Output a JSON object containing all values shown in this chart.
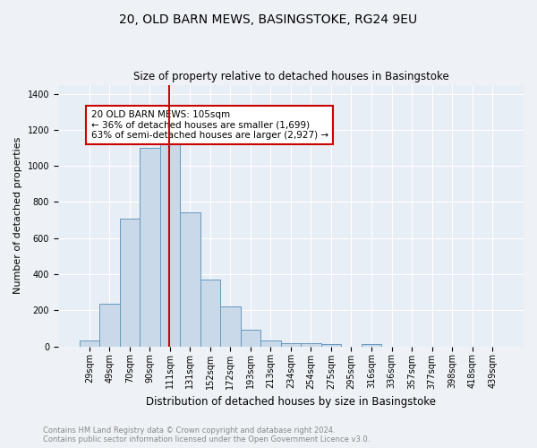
{
  "title": "20, OLD BARN MEWS, BASINGSTOKE, RG24 9EU",
  "subtitle": "Size of property relative to detached houses in Basingstoke",
  "xlabel": "Distribution of detached houses by size in Basingstoke",
  "ylabel": "Number of detached properties",
  "bar_labels": [
    "29sqm",
    "49sqm",
    "70sqm",
    "90sqm",
    "111sqm",
    "131sqm",
    "152sqm",
    "172sqm",
    "193sqm",
    "213sqm",
    "234sqm",
    "254sqm",
    "275sqm",
    "295sqm",
    "316sqm",
    "336sqm",
    "357sqm",
    "377sqm",
    "398sqm",
    "418sqm",
    "439sqm"
  ],
  "bar_values": [
    30,
    235,
    710,
    1100,
    1120,
    745,
    370,
    220,
    90,
    30,
    20,
    20,
    15,
    0,
    15,
    0,
    0,
    0,
    0,
    0,
    0
  ],
  "bar_color": "#c9d9ea",
  "bar_edge_color": "#6699bb",
  "vline_x": 3.95,
  "vline_color": "#cc0000",
  "annotation_text": "20 OLD BARN MEWS: 105sqm\n← 36% of detached houses are smaller (1,699)\n63% of semi-detached houses are larger (2,927) →",
  "annotation_box_color": "white",
  "annotation_box_edge": "#cc0000",
  "ylim": [
    0,
    1450
  ],
  "yticks": [
    0,
    200,
    400,
    600,
    800,
    1000,
    1200,
    1400
  ],
  "footer_line1": "Contains HM Land Registry data © Crown copyright and database right 2024.",
  "footer_line2": "Contains public sector information licensed under the Open Government Licence v3.0.",
  "bg_color": "#eef2f7",
  "plot_bg_color": "#e8eef6",
  "grid_color": "#ffffff",
  "title_fontsize": 10,
  "subtitle_fontsize": 8.5,
  "xlabel_fontsize": 8.5,
  "ylabel_fontsize": 8,
  "tick_fontsize": 7,
  "annot_fontsize": 7.5,
  "footer_fontsize": 6,
  "footer_color": "#888888"
}
